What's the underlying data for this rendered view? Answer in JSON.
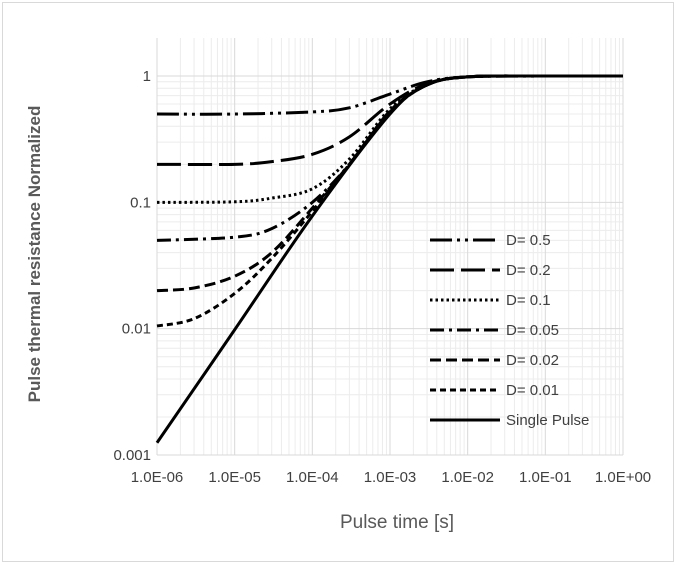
{
  "chart_data": {
    "type": "line",
    "x_scale": "log",
    "y_scale": "log",
    "xlim": [
      1e-06,
      1
    ],
    "ylim": [
      0.001,
      2
    ],
    "xlabel": "Pulse time [s]",
    "ylabel": "Pulse thermal resistance Normalized",
    "x_tick_labels": [
      "1.0E-06",
      "1.0E-05",
      "1.0E-04",
      "1.0E-03",
      "1.0E-02",
      "1.0E-01",
      "1.0E+00"
    ],
    "y_tick_labels": [
      "0.001",
      "0.01",
      "0.1",
      "1"
    ],
    "grid": "major and minor",
    "legend_position": "right",
    "series": [
      {
        "name": "D= 0.5",
        "dash": "dash-dot-dot",
        "x": [
          1e-06,
          1e-05,
          0.0001,
          0.0003,
          0.001,
          0.003,
          0.01,
          0.1,
          1
        ],
        "y": [
          0.5,
          0.5,
          0.52,
          0.56,
          0.72,
          0.9,
          0.985,
          1,
          1
        ]
      },
      {
        "name": "D= 0.2",
        "dash": "long-dash",
        "x": [
          1e-06,
          1e-05,
          3e-05,
          0.0001,
          0.0003,
          0.001,
          0.003,
          0.01,
          0.1,
          1
        ],
        "y": [
          0.2,
          0.2,
          0.21,
          0.24,
          0.33,
          0.6,
          0.87,
          0.985,
          1,
          1
        ]
      },
      {
        "name": "D= 0.1",
        "dash": "dotted",
        "x": [
          1e-06,
          1e-05,
          3e-05,
          0.0001,
          0.0003,
          0.001,
          0.003,
          0.01,
          0.1,
          1
        ],
        "y": [
          0.1,
          0.101,
          0.108,
          0.128,
          0.22,
          0.55,
          0.86,
          0.985,
          1,
          1
        ]
      },
      {
        "name": "D= 0.05",
        "dash": "dash-dot",
        "x": [
          1e-06,
          1e-05,
          3e-05,
          0.0001,
          0.0003,
          0.001,
          0.003,
          0.01,
          0.1,
          1
        ],
        "y": [
          0.05,
          0.053,
          0.062,
          0.1,
          0.2,
          0.53,
          0.85,
          0.985,
          1,
          1
        ]
      },
      {
        "name": "D= 0.02",
        "dash": "dash",
        "x": [
          1e-06,
          3e-06,
          1e-05,
          3e-05,
          0.0001,
          0.0003,
          0.001,
          0.003,
          0.01,
          0.1,
          1
        ],
        "y": [
          0.02,
          0.021,
          0.026,
          0.04,
          0.09,
          0.2,
          0.52,
          0.85,
          0.985,
          1,
          1
        ]
      },
      {
        "name": "D= 0.01",
        "dash": "short-dash",
        "x": [
          1e-06,
          3e-06,
          1e-05,
          3e-05,
          0.0001,
          0.0003,
          0.001,
          0.003,
          0.01,
          0.1,
          1
        ],
        "y": [
          0.0105,
          0.012,
          0.019,
          0.036,
          0.085,
          0.2,
          0.52,
          0.85,
          0.985,
          1,
          1
        ]
      },
      {
        "name": "Single Pulse",
        "dash": "solid",
        "x": [
          1e-06,
          1e-05,
          0.0001,
          0.001,
          0.003,
          0.01,
          0.1,
          1
        ],
        "y": [
          0.00125,
          0.0098,
          0.078,
          0.5,
          0.85,
          0.985,
          1,
          1
        ]
      }
    ]
  }
}
